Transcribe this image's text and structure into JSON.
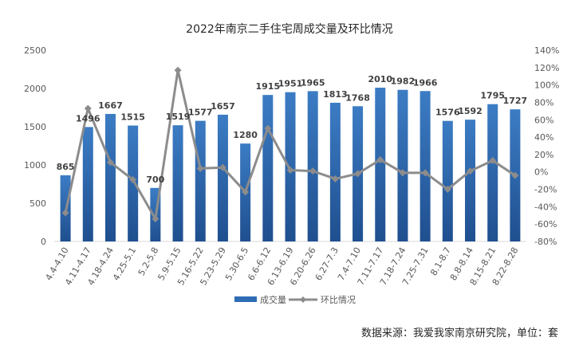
{
  "chart_data": {
    "type": "bar",
    "title": "2022年南京二手住宅周成交量及环比情况",
    "source": "数据来源：我爱我家南京研究院，单位：套",
    "categories": [
      "4.4-4.10",
      "4.11-4.17",
      "4.18-4.24",
      "4.25-5.1",
      "5.2-5.8",
      "5.9-5.15",
      "5.16-5.22",
      "5.23-5.29",
      "5.30-6.5",
      "6.6-6.12",
      "6.13-6.19",
      "6.20-6.26",
      "6.27-7.3",
      "7.4-7.10",
      "7.11-7.17",
      "7.18-7.24",
      "7.25-7.31",
      "8.1-8.7",
      "8.8-8.14",
      "8.15-8.21",
      "8.22-8.28"
    ],
    "series": [
      {
        "name": "成交量",
        "type": "bar",
        "axis": "left",
        "color": "#2E6DB4",
        "values": [
          865,
          1496,
          1667,
          1515,
          700,
          1519,
          1577,
          1657,
          1280,
          1915,
          1951,
          1965,
          1813,
          1768,
          2010,
          1982,
          1966,
          1576,
          1592,
          1795,
          1727
        ]
      },
      {
        "name": "环比情况",
        "type": "line",
        "axis": "right",
        "color": "#8C8C8C",
        "values": [
          -47,
          73,
          11,
          -9,
          -54,
          117,
          4,
          5,
          -23,
          50,
          2,
          1,
          -8,
          -2,
          14,
          -1,
          -1,
          -20,
          1,
          13,
          -4
        ]
      }
    ],
    "y_left": {
      "min": 0,
      "max": 2500,
      "ticks": [
        0,
        500,
        1000,
        1500,
        2000,
        2500
      ]
    },
    "y_right": {
      "min": -80,
      "max": 140,
      "ticks": [
        -80,
        -60,
        -40,
        -20,
        0,
        20,
        40,
        60,
        80,
        100,
        120,
        140
      ],
      "tick_labels": [
        "-80%",
        "-60%",
        "-40%",
        "-20%",
        "0%",
        "20%",
        "40%",
        "60%",
        "80%",
        "100%",
        "120%",
        "140%"
      ]
    },
    "legend": {
      "position": "bottom",
      "items": [
        "成交量",
        "环比情况"
      ]
    },
    "grid": false
  }
}
